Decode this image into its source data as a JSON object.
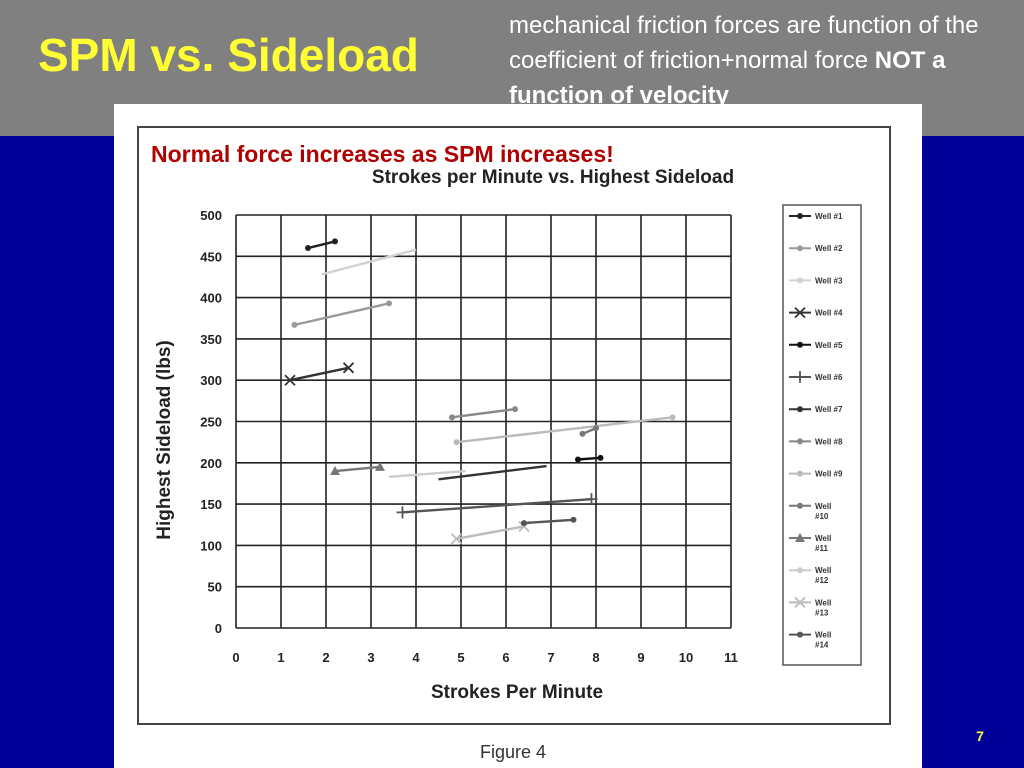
{
  "slide": {
    "title": "SPM vs. Sideload",
    "note_prefix": "mechanical friction forces are function of the coefficient of friction+normal force ",
    "note_bold": "NOT a function of velocity",
    "caption": "Normal force increases as SPM increases!",
    "page_number": "7",
    "figure_label": "Figure 4"
  },
  "colors": {
    "background": "#000099",
    "header": "#808080",
    "title": "#ffff33",
    "caption": "#b00000"
  },
  "chart_data": {
    "type": "line",
    "title": "Strokes per Minute vs. Highest Sideload",
    "xlabel": "Strokes Per Minute",
    "ylabel": "Highest Sideload (lbs)",
    "xlim": [
      0,
      11
    ],
    "ylim": [
      0,
      500
    ],
    "xticks": [
      "0",
      "1",
      "2",
      "3",
      "4",
      "5",
      "6",
      "7",
      "8",
      "9",
      "10",
      "11"
    ],
    "yticks": [
      "0",
      "50",
      "100",
      "150",
      "200",
      "250",
      "300",
      "350",
      "400",
      "450",
      "500"
    ],
    "grid": true,
    "legend_position": "right",
    "series": [
      {
        "name": "Well #1",
        "color": "#222222",
        "marker": "dot",
        "points": [
          [
            1.6,
            460
          ],
          [
            2.2,
            468
          ]
        ]
      },
      {
        "name": "Well #2",
        "color": "#999999",
        "marker": "dot",
        "points": [
          [
            1.3,
            367
          ],
          [
            3.4,
            393
          ]
        ]
      },
      {
        "name": "Well #3",
        "color": "#d2d2d2",
        "marker": "none",
        "points": [
          [
            1.9,
            428
          ],
          [
            4.0,
            458
          ]
        ]
      },
      {
        "name": "Well #4",
        "color": "#333333",
        "marker": "x",
        "points": [
          [
            1.2,
            300
          ],
          [
            2.5,
            315
          ]
        ]
      },
      {
        "name": "Well #5",
        "color": "#111111",
        "marker": "dot",
        "points": [
          [
            7.6,
            204
          ],
          [
            8.1,
            206
          ]
        ]
      },
      {
        "name": "Well #6",
        "color": "#555555",
        "marker": "plus",
        "points": [
          [
            3.7,
            140
          ],
          [
            7.9,
            156
          ]
        ]
      },
      {
        "name": "Well #7",
        "color": "#333333",
        "marker": "none",
        "points": [
          [
            4.5,
            180
          ],
          [
            6.9,
            196
          ]
        ]
      },
      {
        "name": "Well #8",
        "color": "#888888",
        "marker": "dot",
        "points": [
          [
            4.8,
            255
          ],
          [
            6.2,
            265
          ]
        ]
      },
      {
        "name": "Well #9",
        "color": "#bbbbbb",
        "marker": "dot",
        "points": [
          [
            4.9,
            225
          ],
          [
            9.7,
            255
          ]
        ]
      },
      {
        "name": "Well #10",
        "color": "#777777",
        "marker": "dot",
        "points": [
          [
            7.7,
            235
          ],
          [
            8.0,
            242
          ]
        ]
      },
      {
        "name": "Well #11",
        "color": "#777777",
        "marker": "triangle",
        "points": [
          [
            2.2,
            190
          ],
          [
            3.2,
            195
          ]
        ]
      },
      {
        "name": "Well #12",
        "color": "#cccccc",
        "marker": "none",
        "points": [
          [
            3.4,
            183
          ],
          [
            5.1,
            190
          ]
        ]
      },
      {
        "name": "Well #13",
        "color": "#bbbbbb",
        "marker": "x",
        "points": [
          [
            4.9,
            108
          ],
          [
            6.4,
            123
          ]
        ]
      },
      {
        "name": "Well #14",
        "color": "#555555",
        "marker": "dot",
        "points": [
          [
            6.4,
            127
          ],
          [
            7.5,
            131
          ]
        ]
      }
    ],
    "legend_labels": [
      [
        "Well #1"
      ],
      [
        "Well #2"
      ],
      [
        "Well #3"
      ],
      [
        "Well #4"
      ],
      [
        "Well #5"
      ],
      [
        "Well #6"
      ],
      [
        "Well #7"
      ],
      [
        "Well #8"
      ],
      [
        "Well #9"
      ],
      [
        "Well",
        "#10"
      ],
      [
        "Well",
        "#11"
      ],
      [
        "Well",
        "#12"
      ],
      [
        "Well",
        "#13"
      ],
      [
        "Well",
        "#14"
      ]
    ]
  }
}
